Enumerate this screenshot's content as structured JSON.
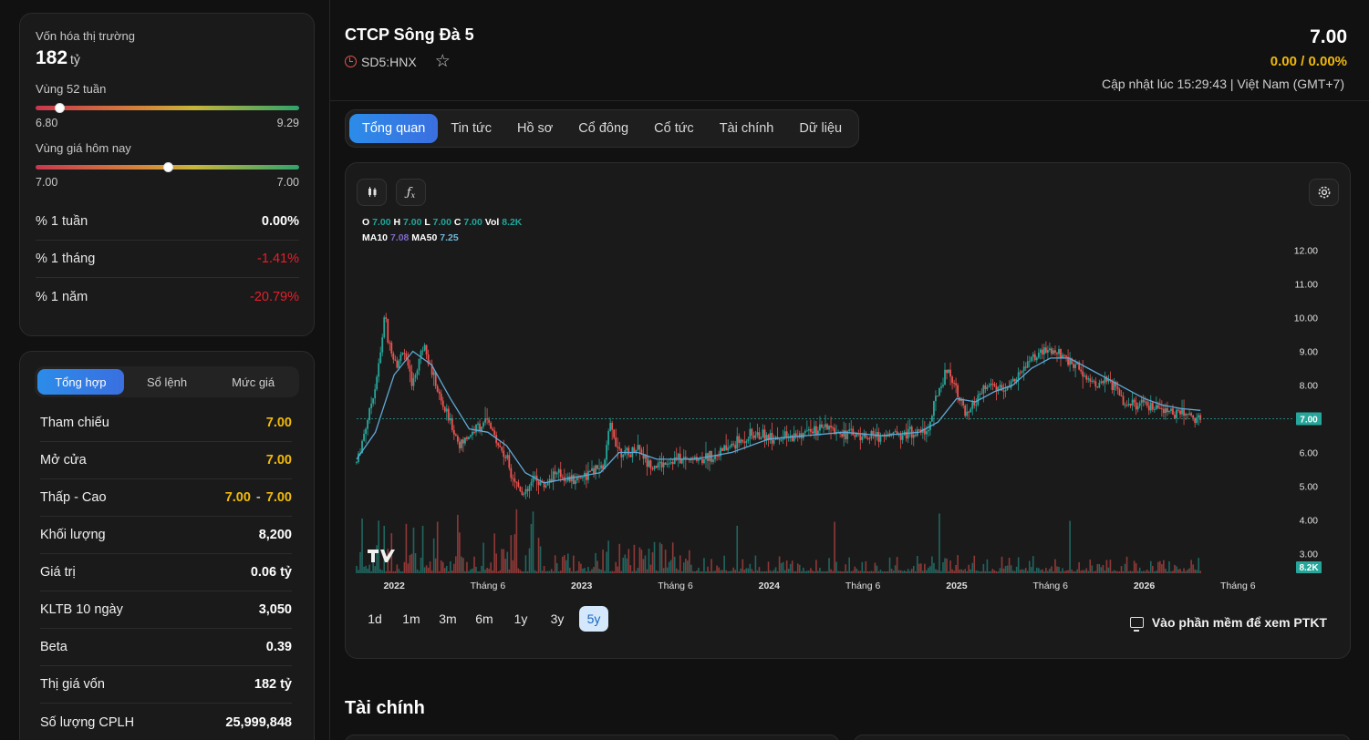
{
  "overview": {
    "market_cap_label": "Vốn hóa thị trường",
    "market_cap_value": "182",
    "market_cap_unit": "tỷ",
    "range52_label": "Vùng 52 tuần",
    "range52_low": "6.80",
    "range52_high": "9.29",
    "range52_position": 0.09,
    "today_label": "Vùng giá hôm nay",
    "today_low": "7.00",
    "today_high": "7.00",
    "today_position": 0.5,
    "performance": [
      {
        "label": "% 1 tuần",
        "value": "0.00%",
        "trend": "flat"
      },
      {
        "label": "% 1 tháng",
        "value": "-1.41%",
        "trend": "down"
      },
      {
        "label": "% 1 năm",
        "value": "-20.79%",
        "trend": "down"
      }
    ]
  },
  "quote_panel": {
    "tabs": [
      "Tổng hợp",
      "Sổ lệnh",
      "Mức giá"
    ],
    "active_tab": 0,
    "rows": [
      {
        "label": "Tham chiếu",
        "value": "7.00",
        "color": "yellow"
      },
      {
        "label": "Mở cửa",
        "value": "7.00",
        "color": "yellow"
      },
      {
        "label": "Thấp - Cao",
        "low": "7.00",
        "sep": "-",
        "high": "7.00",
        "color": "yellow"
      },
      {
        "label": "Khối lượng",
        "value": "8,200"
      },
      {
        "label": "Giá trị",
        "value": "0.06 tỷ"
      },
      {
        "label": "KLTB 10 ngày",
        "value": "3,050"
      },
      {
        "label": "Beta",
        "value": "0.39"
      },
      {
        "label": "Thị giá vốn",
        "value": "182 tỷ"
      },
      {
        "label": "Số lượng CPLH",
        "value": "25,999,848"
      }
    ]
  },
  "header": {
    "company_name": "CTCP Sông Đà 5",
    "ticker": "SD5:HNX",
    "price": "7.00",
    "change": "0.00 / 0.00%",
    "updated": "Cập nhật lúc 15:29:43 | Việt Nam (GMT+7)"
  },
  "tabs": [
    "Tổng quan",
    "Tin tức",
    "Hồ sơ",
    "Cổ đông",
    "Cổ tức",
    "Tài chính",
    "Dữ liệu"
  ],
  "active_tab": 0,
  "chart": {
    "ohlc": {
      "o_label": "O",
      "o": "7.00",
      "h_label": "H",
      "h": "7.00",
      "l_label": "L",
      "l": "7.00",
      "c_label": "C",
      "c": "7.00",
      "vol_label": "Vol",
      "vol": "8.2K"
    },
    "ma": {
      "ma10_label": "MA10",
      "ma10": "7.08",
      "ma50_label": "MA50",
      "ma50": "7.25"
    },
    "last_price_tag": "7.00",
    "last_vol_tag": "8.2K",
    "ranges": [
      "1d",
      "1m",
      "3m",
      "6m",
      "1y",
      "3y",
      "5y"
    ],
    "active_range": "5y",
    "ptkt_label": "Vào phần mềm để xem PTKT",
    "colors": {
      "up": "#26a69a",
      "down": "#ef5350",
      "ma": "#5fa9d8",
      "grid": "#2a2a2a"
    }
  },
  "chart_data": {
    "type": "candlestick",
    "y_ticks": [
      "12.00",
      "11.00",
      "10.00",
      "9.00",
      "8.00",
      "7.00",
      "6.00",
      "5.00",
      "4.00",
      "3.00"
    ],
    "ylim": [
      2.5,
      12.5
    ],
    "x_ticks": [
      {
        "label": "2022",
        "t": 0.2
      },
      {
        "label": "Tháng 6",
        "t": 0.7
      },
      {
        "label": "2023",
        "t": 1.2
      },
      {
        "label": "Tháng 6",
        "t": 1.7
      },
      {
        "label": "2024",
        "t": 2.2
      },
      {
        "label": "Tháng 6",
        "t": 2.7
      },
      {
        "label": "2025",
        "t": 3.2
      },
      {
        "label": "Tháng 6",
        "t": 3.7
      },
      {
        "label": "2026",
        "t": 4.2
      },
      {
        "label": "Tháng 6",
        "t": 4.7
      }
    ],
    "xlim": [
      0,
      5
    ],
    "price_path": [
      [
        0.0,
        5.7
      ],
      [
        0.05,
        6.8
      ],
      [
        0.1,
        8.0
      ],
      [
        0.13,
        9.0
      ],
      [
        0.15,
        10.2
      ],
      [
        0.17,
        9.2
      ],
      [
        0.22,
        8.6
      ],
      [
        0.25,
        9.1
      ],
      [
        0.28,
        8.3
      ],
      [
        0.3,
        8.0
      ],
      [
        0.33,
        8.7
      ],
      [
        0.36,
        9.3
      ],
      [
        0.4,
        8.4
      ],
      [
        0.45,
        7.5
      ],
      [
        0.5,
        6.9
      ],
      [
        0.55,
        6.2
      ],
      [
        0.6,
        6.5
      ],
      [
        0.65,
        6.8
      ],
      [
        0.7,
        6.9
      ],
      [
        0.75,
        6.3
      ],
      [
        0.8,
        5.8
      ],
      [
        0.85,
        5.1
      ],
      [
        0.9,
        4.7
      ],
      [
        0.95,
        5.3
      ],
      [
        1.0,
        5.0
      ],
      [
        1.05,
        5.4
      ],
      [
        1.1,
        5.3
      ],
      [
        1.15,
        5.2
      ],
      [
        1.25,
        5.4
      ],
      [
        1.32,
        5.6
      ],
      [
        1.35,
        6.8
      ],
      [
        1.4,
        6.1
      ],
      [
        1.45,
        5.9
      ],
      [
        1.5,
        6.2
      ],
      [
        1.55,
        5.7
      ],
      [
        1.6,
        5.6
      ],
      [
        1.7,
        5.8
      ],
      [
        1.8,
        5.8
      ],
      [
        1.9,
        5.9
      ],
      [
        2.0,
        6.2
      ],
      [
        2.1,
        6.5
      ],
      [
        2.2,
        6.5
      ],
      [
        2.3,
        6.4
      ],
      [
        2.4,
        6.6
      ],
      [
        2.5,
        6.7
      ],
      [
        2.6,
        6.6
      ],
      [
        2.7,
        6.5
      ],
      [
        2.8,
        6.5
      ],
      [
        2.9,
        6.6
      ],
      [
        3.0,
        6.6
      ],
      [
        3.05,
        6.7
      ],
      [
        3.1,
        7.8
      ],
      [
        3.15,
        8.5
      ],
      [
        3.2,
        7.9
      ],
      [
        3.25,
        7.0
      ],
      [
        3.3,
        7.5
      ],
      [
        3.35,
        7.9
      ],
      [
        3.4,
        8.0
      ],
      [
        3.45,
        7.8
      ],
      [
        3.5,
        8.1
      ],
      [
        3.55,
        8.4
      ],
      [
        3.6,
        8.8
      ],
      [
        3.65,
        8.9
      ],
      [
        3.7,
        9.0
      ],
      [
        3.75,
        8.9
      ],
      [
        3.8,
        8.7
      ],
      [
        3.85,
        8.5
      ],
      [
        3.9,
        8.2
      ],
      [
        3.95,
        8.0
      ],
      [
        4.0,
        8.1
      ],
      [
        4.05,
        7.9
      ],
      [
        4.1,
        7.5
      ],
      [
        4.15,
        7.4
      ],
      [
        4.2,
        7.4
      ],
      [
        4.25,
        7.3
      ],
      [
        4.3,
        7.2
      ],
      [
        4.35,
        7.2
      ],
      [
        4.4,
        7.2
      ],
      [
        4.45,
        7.1
      ],
      [
        4.5,
        7.0
      ]
    ],
    "ma_path": [
      [
        0.0,
        5.8
      ],
      [
        0.1,
        6.6
      ],
      [
        0.2,
        8.3
      ],
      [
        0.3,
        9.0
      ],
      [
        0.4,
        8.6
      ],
      [
        0.5,
        7.6
      ],
      [
        0.6,
        6.7
      ],
      [
        0.7,
        6.6
      ],
      [
        0.8,
        6.2
      ],
      [
        0.9,
        5.4
      ],
      [
        1.0,
        5.1
      ],
      [
        1.1,
        5.2
      ],
      [
        1.2,
        5.3
      ],
      [
        1.3,
        5.4
      ],
      [
        1.4,
        6.0
      ],
      [
        1.5,
        6.0
      ],
      [
        1.6,
        5.8
      ],
      [
        1.8,
        5.8
      ],
      [
        2.0,
        6.0
      ],
      [
        2.2,
        6.4
      ],
      [
        2.4,
        6.5
      ],
      [
        2.6,
        6.6
      ],
      [
        2.8,
        6.5
      ],
      [
        3.0,
        6.6
      ],
      [
        3.1,
        6.9
      ],
      [
        3.2,
        7.6
      ],
      [
        3.3,
        7.5
      ],
      [
        3.4,
        7.8
      ],
      [
        3.5,
        8.0
      ],
      [
        3.6,
        8.5
      ],
      [
        3.7,
        8.8
      ],
      [
        3.8,
        8.8
      ],
      [
        3.9,
        8.5
      ],
      [
        4.0,
        8.2
      ],
      [
        4.1,
        7.9
      ],
      [
        4.2,
        7.6
      ],
      [
        4.3,
        7.4
      ],
      [
        4.4,
        7.3
      ],
      [
        4.5,
        7.25
      ]
    ]
  },
  "finance_section": {
    "title": "Tài chính"
  }
}
